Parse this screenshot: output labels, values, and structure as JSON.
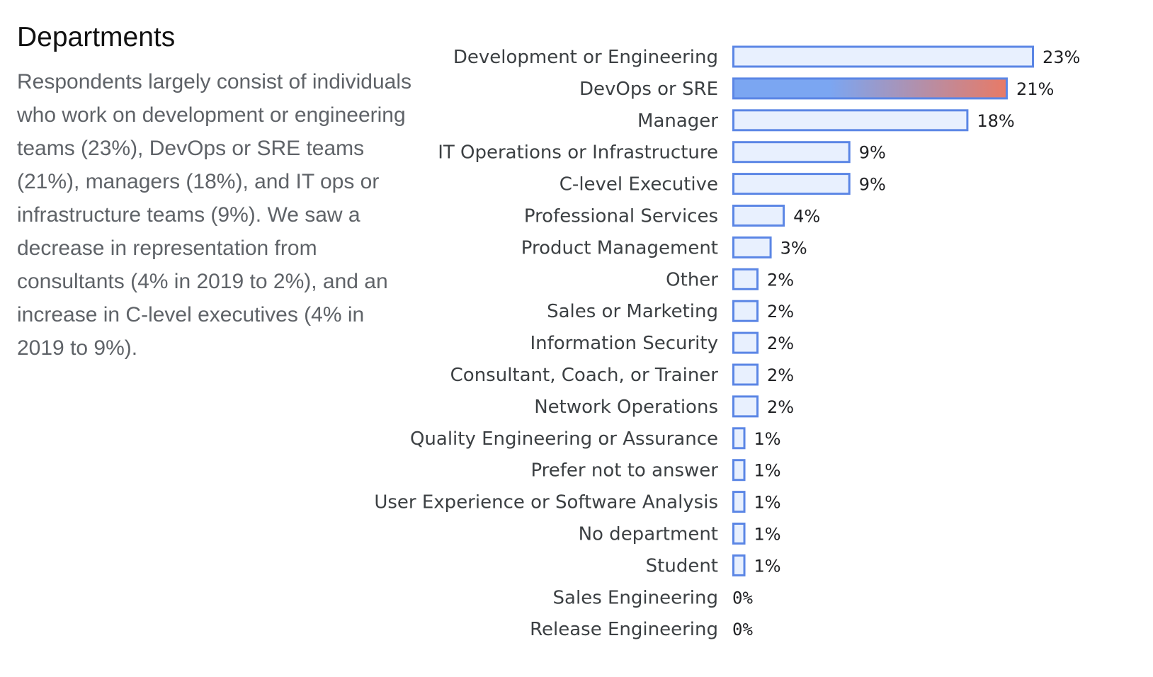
{
  "title": "Departments",
  "description": "Respondents largely consist of individuals who work on development or engineering teams (23%), DevOps or SRE teams (21%), managers (18%), and IT ops or infrastructure teams (9%). We saw a decrease in representation from consultants (4% in 2019 to 2%), and an increase in C-level executives (4% in 2019 to 9%).",
  "colors": {
    "bar_fill": "#e8f0fe",
    "bar_stroke": "#5b86e5",
    "highlight_start": "#7ba6f2",
    "highlight_end": "#e87a66"
  },
  "chart_data": {
    "type": "bar",
    "orientation": "horizontal",
    "categories": [
      "Development or Engineering",
      "DevOps or SRE",
      "Manager",
      "IT Operations or Infrastructure",
      "C-level Executive",
      "Professional Services",
      "Product Management",
      "Other",
      "Sales or Marketing",
      "Information Security",
      "Consultant, Coach, or Trainer",
      "Network Operations",
      "Quality Engineering or Assurance",
      "Prefer not to answer",
      "User Experience or Software Analysis",
      "No department",
      "Student",
      "Sales Engineering",
      "Release Engineering"
    ],
    "values": [
      23,
      21,
      18,
      9,
      9,
      4,
      3,
      2,
      2,
      2,
      2,
      2,
      1,
      1,
      1,
      1,
      1,
      0,
      0
    ],
    "value_labels": [
      "23%",
      "21%",
      "18%",
      "9%",
      "9%",
      "4%",
      "3%",
      "2%",
      "2%",
      "2%",
      "2%",
      "2%",
      "1%",
      "1%",
      "1%",
      "1%",
      "1%",
      "0%",
      "0%"
    ],
    "unit": "%",
    "highlight_index": 1,
    "xlim": [
      0,
      23
    ],
    "title": "",
    "xlabel": "",
    "ylabel": "",
    "grid": false,
    "legend": "none"
  }
}
